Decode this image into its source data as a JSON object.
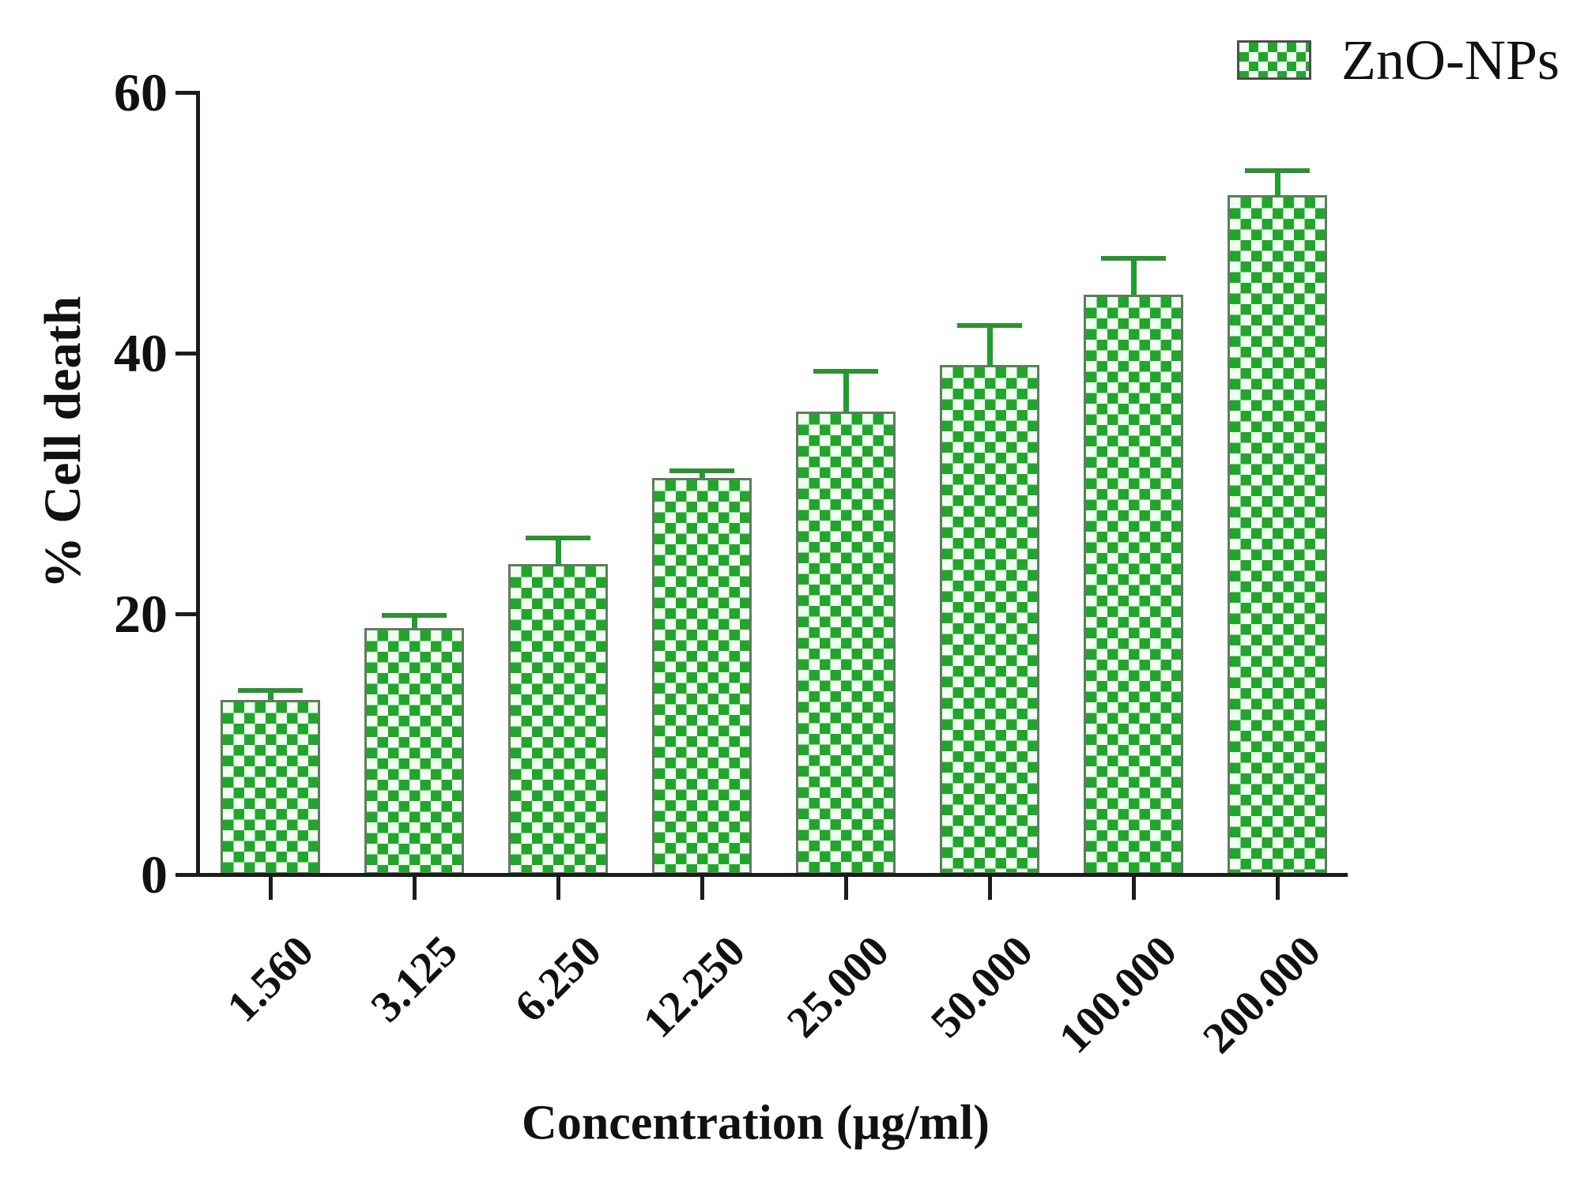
{
  "chart_data": {
    "type": "bar",
    "title": "",
    "xlabel": "Concentration (µg/ml)",
    "ylabel": "% Cell death",
    "categories": [
      "1.560",
      "3.125",
      "6.250",
      "12.250",
      "25.000",
      "50.000",
      "100.000",
      "200.000"
    ],
    "values": [
      13.4,
      18.9,
      23.8,
      30.4,
      35.5,
      39.1,
      44.5,
      52.1
    ],
    "errors": [
      0.7,
      1.0,
      2.0,
      0.6,
      3.1,
      3.0,
      2.8,
      1.9
    ],
    "ylim": [
      0,
      60
    ],
    "yticks": [
      0,
      20,
      40,
      60
    ],
    "grid": false,
    "legend": {
      "label": "ZnO-NPs",
      "position": "top-right"
    },
    "colors": {
      "bar_green": "#22A52C",
      "bar_light": "#F2FDF2",
      "bar_border": "#5d7d5d",
      "error_bar": "#1F9E2C",
      "axis": "#1c1c1c",
      "text": "#111111"
    }
  }
}
